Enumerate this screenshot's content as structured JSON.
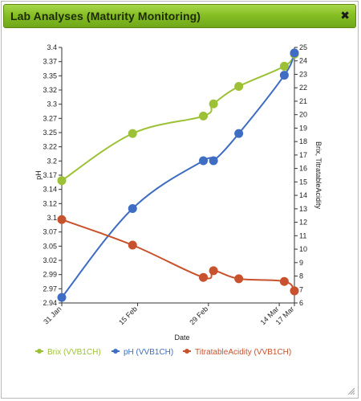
{
  "dialog": {
    "title": "Lab Analyses (Maturity Monitoring)",
    "close_glyph": "✖"
  },
  "chart_data": {
    "type": "line",
    "x_label": "Date",
    "left_axis": {
      "label": "pH",
      "ticks": [
        "3.4",
        "3.37",
        "3.35",
        "3.32",
        "3.3",
        "3.27",
        "3.25",
        "3.22",
        "3.2",
        "3.17",
        "3.14",
        "3.12",
        "3.1",
        "3.07",
        "3.05",
        "3.02",
        "2.99",
        "2.97",
        "2.94"
      ],
      "range": [
        2.94,
        3.4
      ]
    },
    "right_axis": {
      "label": "Brix, TitratableAcidity",
      "ticks": [
        "25",
        "24",
        "23",
        "22",
        "21",
        "20",
        "19",
        "18",
        "17",
        "16",
        "15",
        "14",
        "13",
        "12",
        "11",
        "10",
        "9",
        "8",
        "7",
        "6"
      ],
      "range": [
        6,
        25
      ]
    },
    "x_ticks": [
      {
        "label": "31 Jan",
        "day": 0
      },
      {
        "label": "15 Feb",
        "day": 15
      },
      {
        "label": "29 Feb",
        "day": 29
      },
      {
        "label": "14 Mar",
        "day": 43
      },
      {
        "label": "17 Mar",
        "day": 46
      }
    ],
    "x_range": [
      0,
      46
    ],
    "series": [
      {
        "name": "Brix (VVB1CH)",
        "axis": "right",
        "color": "#9dc136",
        "points": [
          [
            0,
            15.1
          ],
          [
            14,
            18.6
          ],
          [
            28,
            19.9
          ],
          [
            30,
            20.8
          ],
          [
            35,
            22.1
          ],
          [
            44,
            23.6
          ],
          [
            46,
            24.5
          ]
        ]
      },
      {
        "name": "pH (VVB1CH)",
        "axis": "left",
        "color": "#3e6dc3",
        "points": [
          [
            0,
            2.95
          ],
          [
            14,
            3.11
          ],
          [
            28,
            3.196
          ],
          [
            30,
            3.196
          ],
          [
            35,
            3.245
          ],
          [
            44,
            3.35
          ],
          [
            46,
            3.39
          ]
        ]
      },
      {
        "name": "TitratableAcidity (VVB1CH)",
        "axis": "right",
        "color": "#c8522d",
        "points": [
          [
            0,
            12.2
          ],
          [
            14,
            10.3
          ],
          [
            28,
            7.9
          ],
          [
            30,
            8.4
          ],
          [
            35,
            7.8
          ],
          [
            44,
            7.6
          ],
          [
            46,
            6.9
          ]
        ]
      }
    ]
  }
}
